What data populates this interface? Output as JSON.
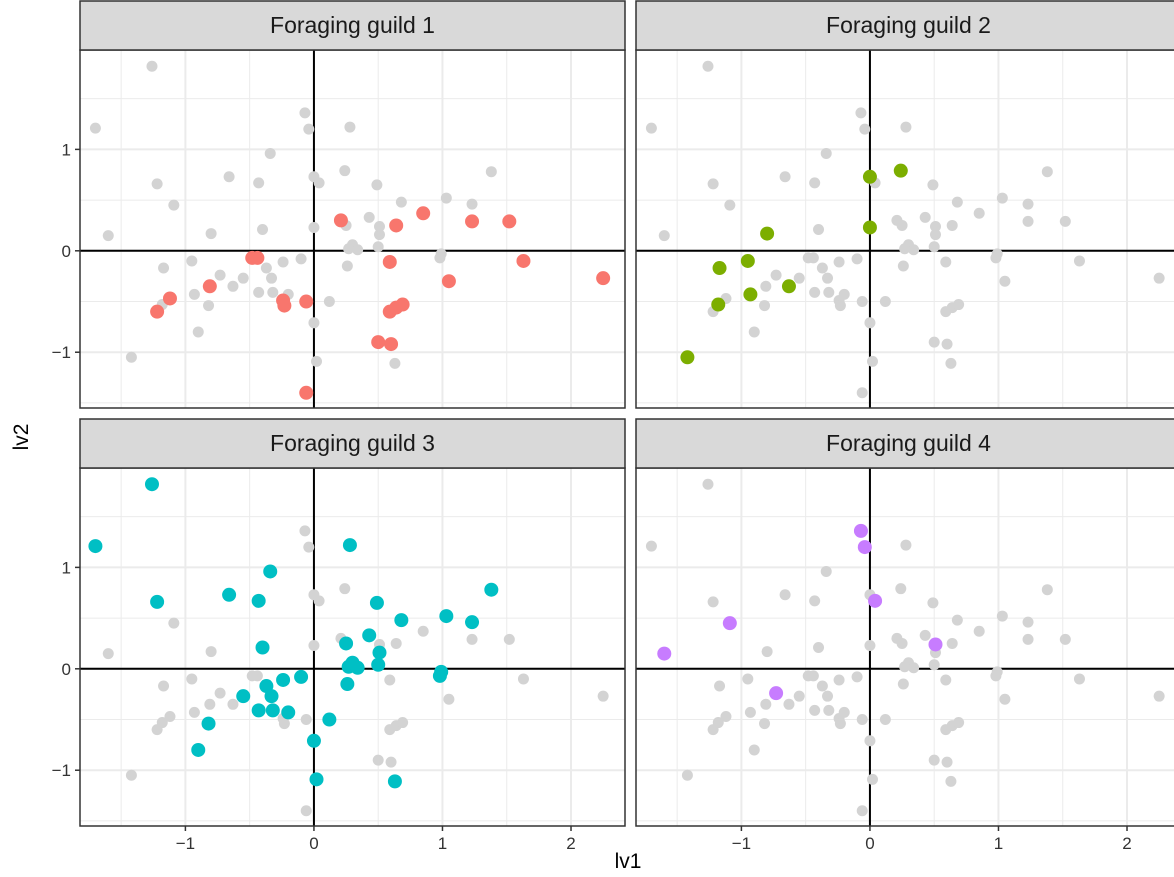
{
  "chart_data": {
    "type": "scatter",
    "facet_labels": [
      "Foraging guild 1",
      "Foraging guild 2",
      "Foraging guild 3",
      "Foraging guild 4"
    ],
    "xlabel": "lv1",
    "ylabel": "lv2",
    "xlim": [
      -1.82,
      2.42
    ],
    "ylim": [
      -1.55,
      1.98
    ],
    "x_ticks": [
      -1,
      0,
      1,
      2
    ],
    "x_tick_labels": [
      "−1",
      "0",
      "1",
      "2"
    ],
    "y_ticks": [
      -1,
      0,
      1
    ],
    "y_tick_labels": [
      "−1",
      "0",
      "1"
    ],
    "grid": true,
    "reference_lines": {
      "x": 0,
      "y": 0
    },
    "legend": "none",
    "colors": {
      "background_points": "#d3d3d3",
      "guild_1": "#F8766D",
      "guild_2": "#7CAE00",
      "guild_3": "#00BFC4",
      "guild_4": "#C77CFF",
      "strip_fill": "#d9d9d9",
      "grid": "#ebebeb"
    },
    "series": [
      {
        "color": "#F8766D",
        "points": [
          [
            -1.22,
            -0.6
          ],
          [
            -1.12,
            -0.47
          ],
          [
            -0.81,
            -0.35
          ],
          [
            -0.48,
            -0.07
          ],
          [
            -0.44,
            -0.07
          ],
          [
            -0.24,
            -0.49
          ],
          [
            -0.23,
            -0.54
          ],
          [
            -0.06,
            -0.5
          ],
          [
            -0.06,
            -1.4
          ],
          [
            0.21,
            0.3
          ],
          [
            0.59,
            -0.11
          ],
          [
            0.59,
            -0.6
          ],
          [
            0.64,
            0.25
          ],
          [
            0.64,
            -0.56
          ],
          [
            0.69,
            -0.53
          ],
          [
            0.5,
            -0.9
          ],
          [
            0.6,
            -0.92
          ],
          [
            0.85,
            0.37
          ],
          [
            1.05,
            -0.3
          ],
          [
            1.23,
            0.29
          ],
          [
            1.52,
            0.29
          ],
          [
            1.63,
            -0.1
          ],
          [
            2.25,
            -0.27
          ]
        ]
      },
      {
        "color": "#7CAE00",
        "points": [
          [
            -1.42,
            -1.05
          ],
          [
            -1.18,
            -0.53
          ],
          [
            -1.17,
            -0.17
          ],
          [
            -0.95,
            -0.1
          ],
          [
            -0.93,
            -0.43
          ],
          [
            -0.8,
            0.17
          ],
          [
            -0.63,
            -0.35
          ],
          [
            0.0,
            0.73
          ],
          [
            0.0,
            0.23
          ],
          [
            0.24,
            0.79
          ]
        ]
      },
      {
        "color": "#00BFC4",
        "points": [
          [
            -1.7,
            1.21
          ],
          [
            -1.26,
            1.82
          ],
          [
            -1.22,
            0.66
          ],
          [
            -0.9,
            -0.8
          ],
          [
            -0.82,
            -0.54
          ],
          [
            -0.66,
            0.73
          ],
          [
            -0.55,
            -0.27
          ],
          [
            -0.43,
            0.67
          ],
          [
            -0.43,
            -0.41
          ],
          [
            -0.4,
            0.21
          ],
          [
            -0.37,
            -0.17
          ],
          [
            -0.34,
            0.96
          ],
          [
            -0.33,
            -0.27
          ],
          [
            -0.32,
            -0.41
          ],
          [
            -0.24,
            -0.11
          ],
          [
            -0.2,
            -0.43
          ],
          [
            -0.1,
            -0.08
          ],
          [
            0.12,
            -0.5
          ],
          [
            0.0,
            -0.71
          ],
          [
            0.02,
            -1.09
          ],
          [
            0.25,
            0.25
          ],
          [
            0.26,
            -0.15
          ],
          [
            0.27,
            0.02
          ],
          [
            0.28,
            1.22
          ],
          [
            0.3,
            0.06
          ],
          [
            0.34,
            0.01
          ],
          [
            0.43,
            0.33
          ],
          [
            0.49,
            0.65
          ],
          [
            0.5,
            0.04
          ],
          [
            0.51,
            0.16
          ],
          [
            0.63,
            -1.11
          ],
          [
            0.68,
            0.48
          ],
          [
            0.98,
            -0.07
          ],
          [
            0.99,
            -0.03
          ],
          [
            1.03,
            0.52
          ],
          [
            1.23,
            0.46
          ],
          [
            1.38,
            0.78
          ]
        ]
      },
      {
        "color": "#C77CFF",
        "points": [
          [
            -1.6,
            0.15
          ],
          [
            -1.09,
            0.45
          ],
          [
            -0.73,
            -0.24
          ],
          [
            -0.07,
            1.36
          ],
          [
            -0.04,
            1.2
          ],
          [
            0.04,
            0.67
          ],
          [
            0.51,
            0.24
          ]
        ]
      }
    ],
    "background_points": [
      [
        -1.7,
        1.21
      ],
      [
        -1.26,
        1.82
      ],
      [
        -1.22,
        0.66
      ],
      [
        -0.9,
        -0.8
      ],
      [
        -0.82,
        -0.54
      ],
      [
        -0.66,
        0.73
      ],
      [
        -0.55,
        -0.27
      ],
      [
        -0.43,
        0.67
      ],
      [
        -0.43,
        -0.41
      ],
      [
        -0.4,
        0.21
      ],
      [
        -0.37,
        -0.17
      ],
      [
        -0.34,
        0.96
      ],
      [
        -0.33,
        -0.27
      ],
      [
        -0.32,
        -0.41
      ],
      [
        -0.24,
        -0.11
      ],
      [
        -0.2,
        -0.43
      ],
      [
        -0.1,
        -0.08
      ],
      [
        0.12,
        -0.5
      ],
      [
        0.0,
        -0.71
      ],
      [
        0.02,
        -1.09
      ],
      [
        0.25,
        0.25
      ],
      [
        0.26,
        -0.15
      ],
      [
        0.27,
        0.02
      ],
      [
        0.28,
        1.22
      ],
      [
        0.3,
        0.06
      ],
      [
        0.34,
        0.01
      ],
      [
        0.43,
        0.33
      ],
      [
        0.49,
        0.65
      ],
      [
        0.5,
        0.04
      ],
      [
        0.51,
        0.16
      ],
      [
        0.63,
        -1.11
      ],
      [
        0.68,
        0.48
      ],
      [
        0.98,
        -0.07
      ],
      [
        0.99,
        -0.03
      ],
      [
        1.03,
        0.52
      ],
      [
        1.23,
        0.46
      ],
      [
        1.38,
        0.78
      ],
      [
        -1.22,
        -0.6
      ],
      [
        -1.12,
        -0.47
      ],
      [
        -0.81,
        -0.35
      ],
      [
        -0.48,
        -0.07
      ],
      [
        -0.44,
        -0.07
      ],
      [
        -0.24,
        -0.49
      ],
      [
        -0.23,
        -0.54
      ],
      [
        -0.06,
        -0.5
      ],
      [
        -0.06,
        -1.4
      ],
      [
        0.21,
        0.3
      ],
      [
        0.59,
        -0.11
      ],
      [
        0.59,
        -0.6
      ],
      [
        0.64,
        0.25
      ],
      [
        0.64,
        -0.56
      ],
      [
        0.69,
        -0.53
      ],
      [
        0.5,
        -0.9
      ],
      [
        0.6,
        -0.92
      ],
      [
        0.85,
        0.37
      ],
      [
        1.05,
        -0.3
      ],
      [
        1.23,
        0.29
      ],
      [
        1.52,
        0.29
      ],
      [
        1.63,
        -0.1
      ],
      [
        2.25,
        -0.27
      ],
      [
        -1.42,
        -1.05
      ],
      [
        -1.18,
        -0.53
      ],
      [
        -1.17,
        -0.17
      ],
      [
        -0.95,
        -0.1
      ],
      [
        -0.93,
        -0.43
      ],
      [
        -0.8,
        0.17
      ],
      [
        -0.63,
        -0.35
      ],
      [
        0.0,
        0.73
      ],
      [
        0.0,
        0.23
      ],
      [
        0.24,
        0.79
      ],
      [
        -1.6,
        0.15
      ],
      [
        -1.09,
        0.45
      ],
      [
        -0.73,
        -0.24
      ],
      [
        -0.07,
        1.36
      ],
      [
        -0.04,
        1.2
      ],
      [
        0.04,
        0.67
      ],
      [
        0.51,
        0.24
      ]
    ]
  }
}
